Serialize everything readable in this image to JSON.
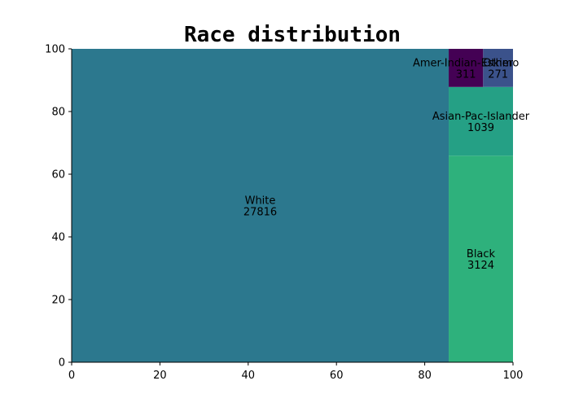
{
  "chart_data": {
    "type": "treemap",
    "title": "Race distribution",
    "xlim": [
      0,
      100
    ],
    "ylim": [
      0,
      100
    ],
    "xticks": [
      0,
      20,
      40,
      60,
      80,
      100
    ],
    "yticks": [
      0,
      20,
      40,
      60,
      80,
      100
    ],
    "grid": false,
    "cells": [
      {
        "label": "White",
        "value": 27816,
        "color": "#2c788e",
        "x": 0,
        "y": 0,
        "w": 85.43,
        "h": 100
      },
      {
        "label": "Black",
        "value": 3124,
        "color": "#2eb17c",
        "x": 85.43,
        "y": 0,
        "w": 14.57,
        "h": 65.92
      },
      {
        "label": "Asian-Pac-Islander",
        "value": 1039,
        "color": "#25a085",
        "x": 85.43,
        "y": 65.92,
        "w": 14.57,
        "h": 21.92
      },
      {
        "label": "Amer-Indian-Eskimo",
        "value": 311,
        "color": "#440154",
        "x": 85.43,
        "y": 87.84,
        "w": 7.8,
        "h": 12.16
      },
      {
        "label": "Other",
        "value": 271,
        "color": "#3b528b",
        "x": 93.23,
        "y": 87.84,
        "w": 6.77,
        "h": 12.16
      }
    ]
  }
}
